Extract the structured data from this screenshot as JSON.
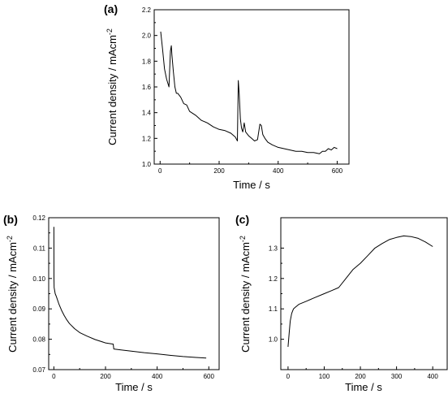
{
  "chart_data": [
    {
      "type": "line",
      "panel_label": "(a)",
      "xlabel": "Time / s",
      "ylabel": "Current density / mAcm",
      "ylabel_sup": "-2",
      "xlim": [
        -20,
        640
      ],
      "ylim": [
        1.0,
        2.2
      ],
      "xticks": [
        "0",
        "200",
        "400",
        "600"
      ],
      "xtick_values": [
        0,
        200,
        400,
        600
      ],
      "yticks": [
        "1.0",
        "1.2",
        "1.4",
        "1.6",
        "1.8",
        "2.0",
        "2.2"
      ],
      "ytick_values": [
        1.0,
        1.2,
        1.4,
        1.6,
        1.8,
        2.0,
        2.2
      ],
      "series": [
        {
          "x": [
            2,
            8,
            15,
            22,
            30,
            35,
            38,
            40,
            45,
            50,
            55,
            60,
            70,
            80,
            90,
            100,
            120,
            140,
            160,
            180,
            200,
            220,
            240,
            255,
            262,
            265,
            268,
            272,
            276,
            280,
            285,
            290,
            300,
            310,
            320,
            330,
            338,
            343,
            348,
            355,
            365,
            380,
            400,
            420,
            440,
            460,
            480,
            500,
            520,
            540,
            550,
            560,
            570,
            580,
            590,
            600
          ],
          "y": [
            2.03,
            1.9,
            1.74,
            1.66,
            1.6,
            1.88,
            1.92,
            1.85,
            1.72,
            1.6,
            1.55,
            1.55,
            1.52,
            1.47,
            1.46,
            1.41,
            1.38,
            1.34,
            1.32,
            1.29,
            1.27,
            1.26,
            1.24,
            1.21,
            1.18,
            1.65,
            1.55,
            1.35,
            1.28,
            1.25,
            1.32,
            1.25,
            1.22,
            1.2,
            1.18,
            1.19,
            1.31,
            1.3,
            1.23,
            1.2,
            1.17,
            1.15,
            1.13,
            1.12,
            1.11,
            1.1,
            1.1,
            1.09,
            1.09,
            1.08,
            1.1,
            1.1,
            1.12,
            1.11,
            1.13,
            1.12
          ]
        }
      ]
    },
    {
      "type": "line",
      "panel_label": "(b)",
      "xlabel": "Time / s",
      "ylabel": "Current density / mAcm",
      "ylabel_sup": "-2",
      "xlim": [
        -20,
        640
      ],
      "ylim": [
        0.07,
        0.12
      ],
      "xticks": [
        "0",
        "200",
        "400",
        "600"
      ],
      "xtick_values": [
        0,
        200,
        400,
        600
      ],
      "yticks": [
        "0.07",
        "0.08",
        "0.09",
        "0.10",
        "0.11",
        "0.12"
      ],
      "ytick_values": [
        0.07,
        0.08,
        0.09,
        0.1,
        0.11,
        0.12
      ],
      "series": [
        {
          "x": [
            0,
            0.5,
            1,
            5,
            10,
            20,
            30,
            40,
            50,
            60,
            80,
            100,
            130,
            160,
            200,
            230,
            232,
            260,
            300,
            350,
            400,
            450,
            500,
            550,
            590
          ],
          "y": [
            0.117,
            0.1,
            0.097,
            0.095,
            0.094,
            0.0915,
            0.0895,
            0.0878,
            0.0864,
            0.0852,
            0.0835,
            0.0822,
            0.081,
            0.0799,
            0.0788,
            0.0784,
            0.0768,
            0.0765,
            0.0761,
            0.0756,
            0.0752,
            0.0747,
            0.0743,
            0.074,
            0.0738
          ]
        }
      ]
    },
    {
      "type": "line",
      "panel_label": "(c)",
      "xlabel": "Time / s",
      "ylabel": "Current density / mAcm",
      "ylabel_sup": "-2",
      "xlim": [
        -20,
        440
      ],
      "ylim": [
        0.9,
        1.4
      ],
      "xticks": [
        "0",
        "100",
        "200",
        "300",
        "400"
      ],
      "xtick_values": [
        0,
        100,
        200,
        300,
        400
      ],
      "yticks": [
        "1.0",
        "1.1",
        "1.2",
        "1.3"
      ],
      "ytick_values": [
        1.0,
        1.1,
        1.2,
        1.3
      ],
      "series": [
        {
          "x": [
            0,
            3,
            6,
            10,
            15,
            20,
            30,
            50,
            70,
            100,
            120,
            140,
            160,
            180,
            200,
            220,
            240,
            260,
            280,
            300,
            320,
            340,
            360,
            380,
            400
          ],
          "y": [
            0.975,
            1.02,
            1.06,
            1.085,
            1.1,
            1.105,
            1.115,
            1.125,
            1.135,
            1.15,
            1.16,
            1.17,
            1.2,
            1.23,
            1.25,
            1.275,
            1.3,
            1.315,
            1.328,
            1.335,
            1.34,
            1.338,
            1.332,
            1.32,
            1.305
          ]
        }
      ]
    }
  ]
}
